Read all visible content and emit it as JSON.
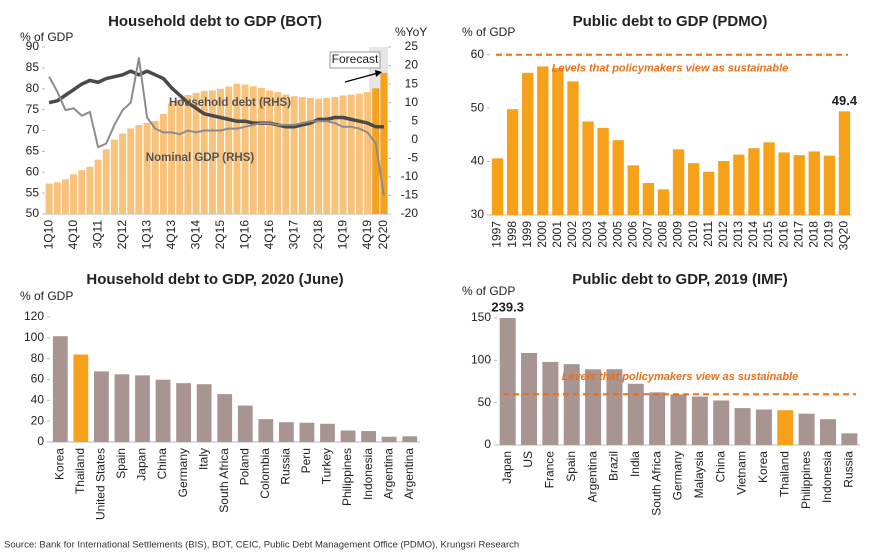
{
  "chart_data": [
    {
      "type": "bar_line",
      "title": "Household debt to GDP (BOT)",
      "y_label": "% of GDP",
      "y2_label": "%YoY",
      "annotation": "Forecast",
      "categories": [
        "1Q10",
        null,
        null,
        "4Q10",
        null,
        null,
        "3Q11",
        null,
        null,
        "2Q12",
        null,
        null,
        "1Q13",
        null,
        null,
        "4Q13",
        null,
        null,
        "3Q14",
        null,
        null,
        "2Q15",
        null,
        null,
        "1Q16",
        null,
        null,
        "4Q16",
        null,
        null,
        "3Q17",
        null,
        null,
        "2Q18",
        null,
        null,
        "1Q19",
        null,
        null,
        "4Q19",
        null,
        "2Q20"
      ],
      "values": [
        57.3,
        57.6,
        58.3,
        59.5,
        60.5,
        61.3,
        63.0,
        65.5,
        67.8,
        69.3,
        70.5,
        71.3,
        71.8,
        72.3,
        74.0,
        76.5,
        77.3,
        78.5,
        79.0,
        79.5,
        79.6,
        80.0,
        80.5,
        81.2,
        81.0,
        80.6,
        80.2,
        79.6,
        79.2,
        78.6,
        78.2,
        78.0,
        77.8,
        77.6,
        77.8,
        78.0,
        78.4,
        78.6,
        78.8,
        79.2,
        80.1,
        83.8
      ],
      "colors": [
        "#f9c27a",
        "#f9c27a",
        "#f9c27a",
        "#f9c27a",
        "#f9c27a",
        "#f9c27a",
        "#f9c27a",
        "#f9c27a",
        "#f9c27a",
        "#f9c27a",
        "#f9c27a",
        "#f9c27a",
        "#f9c27a",
        "#f9c27a",
        "#f9c27a",
        "#f9c27a",
        "#f9c27a",
        "#f9c27a",
        "#f9c27a",
        "#f9c27a",
        "#f9c27a",
        "#f9c27a",
        "#f9c27a",
        "#f9c27a",
        "#f9c27a",
        "#f9c27a",
        "#f9c27a",
        "#f9c27a",
        "#f9c27a",
        "#f9c27a",
        "#f9c27a",
        "#f9c27a",
        "#f9c27a",
        "#f9c27a",
        "#f9c27a",
        "#f9c27a",
        "#f9c27a",
        "#f9c27a",
        "#f9c27a",
        "#f9c27a",
        "#f7a11a",
        "#f7a11a"
      ],
      "series": [
        {
          "name": "Household debt (RHS)",
          "color": "#4a4a4a",
          "axis": "y2",
          "values": [
            10,
            10.5,
            12,
            13.5,
            15,
            16,
            15.5,
            16.5,
            17,
            17.5,
            18.5,
            17.5,
            18.5,
            17.5,
            16.5,
            14,
            12,
            10,
            8.5,
            7,
            6.5,
            6,
            5.5,
            5,
            5,
            4.5,
            4.5,
            4.5,
            4,
            3.5,
            3.5,
            4,
            4.5,
            5.5,
            5.5,
            6,
            6,
            5.5,
            5,
            4.5,
            3.5,
            3.5
          ]
        },
        {
          "name": "Nominal GDP (RHS)",
          "color": "#8c8c8c",
          "axis": "y2",
          "values": [
            17,
            13,
            8,
            8.5,
            6.5,
            7.5,
            -2,
            -1,
            4,
            8,
            10,
            22,
            6,
            3,
            2,
            2,
            1.5,
            2.5,
            2,
            2.5,
            2.5,
            2.5,
            3,
            3,
            3.5,
            4,
            4.5,
            4.5,
            4,
            4,
            4,
            4.5,
            5,
            5,
            5,
            4.5,
            3.5,
            3.5,
            3,
            2,
            -1,
            -15
          ]
        }
      ],
      "ylim": [
        50,
        90
      ],
      "yticks": [
        50,
        55,
        60,
        65,
        70,
        75,
        80,
        85,
        90
      ],
      "y2lim": [
        -20,
        25
      ],
      "y2ticks": [
        -20,
        -15,
        -10,
        -5,
        0,
        5,
        10,
        15,
        20,
        25
      ]
    },
    {
      "type": "bar",
      "title": "Public debt to GDP (PDMO)",
      "y_label": "% of GDP",
      "categories": [
        "1997",
        "1998",
        "1999",
        "2000",
        "2001",
        "2002",
        "2003",
        "2004",
        "2005",
        "2006",
        "2007",
        "2008",
        "2009",
        "2010",
        "2011",
        "2012",
        "2013",
        "2014",
        "2015",
        "2016",
        "2017",
        "2018",
        "2019",
        "3Q20"
      ],
      "values": [
        40.6,
        49.8,
        56.6,
        57.8,
        57.5,
        55.0,
        47.5,
        46.3,
        44.0,
        39.3,
        36.0,
        34.8,
        42.3,
        39.7,
        38.1,
        40.1,
        41.3,
        42.5,
        43.6,
        41.7,
        41.2,
        41.9,
        41.1,
        49.4
      ],
      "value_labels": [
        null,
        null,
        null,
        null,
        null,
        null,
        null,
        null,
        null,
        null,
        null,
        null,
        null,
        null,
        null,
        null,
        null,
        null,
        null,
        null,
        null,
        null,
        null,
        "49.4"
      ],
      "color": "#f7a11a",
      "ylim": [
        30,
        62
      ],
      "yticks": [
        30,
        40,
        50,
        60
      ],
      "reference": {
        "value": 60,
        "label": "Levels that policymakers view as sustainable",
        "color": "#e8701a"
      }
    },
    {
      "type": "bar",
      "title": "Household debt to GDP, 2020 (June)",
      "y_label": "% of GDP",
      "categories": [
        "Korea",
        "Thailand",
        "United States",
        "Spain",
        "Japan",
        "China",
        "Germany",
        "Italy",
        "South Africa",
        "Poland",
        "Colombia",
        "Russia",
        "Peru",
        "Turkey",
        "Philippines",
        "Indonesia",
        "Argentina",
        "Argentina"
      ],
      "values": [
        101.6,
        84.0,
        67.8,
        65.0,
        64.0,
        59.8,
        56.5,
        55.5,
        46.0,
        35.0,
        22.0,
        19.0,
        18.5,
        17.5,
        11.0,
        10.5,
        5.0,
        5.5
      ],
      "colors": [
        "#a89592",
        "#f7a11a",
        "#a89592",
        "#a89592",
        "#a89592",
        "#a89592",
        "#a89592",
        "#a89592",
        "#a89592",
        "#a89592",
        "#a89592",
        "#a89592",
        "#a89592",
        "#a89592",
        "#a89592",
        "#a89592",
        "#a89592",
        "#a89592"
      ],
      "ylim": [
        0,
        120
      ],
      "yticks": [
        0,
        20,
        40,
        60,
        80,
        100,
        120
      ]
    },
    {
      "type": "bar",
      "title": "Public debt to GDP, 2019 (IMF)",
      "y_label": "% of GDP",
      "categories": [
        "Japan",
        "US",
        "France",
        "Spain",
        "Argentina",
        "Brazil",
        "India",
        "South Africa",
        "Germany",
        "Malaysia",
        "China",
        "Vietnam",
        "Korea",
        "Thailand",
        "Philippines",
        "Indonesia",
        "Russia"
      ],
      "values": [
        239.3,
        108.7,
        98.1,
        95.5,
        89.4,
        89.5,
        72.3,
        62.2,
        59.8,
        57.2,
        52.6,
        43.6,
        41.9,
        41.1,
        37.0,
        30.5,
        13.8
      ],
      "value_labels": [
        "239.3",
        null,
        null,
        null,
        null,
        null,
        null,
        null,
        null,
        null,
        null,
        null,
        null,
        null,
        null,
        null,
        null
      ],
      "colors": [
        "#a89592",
        "#a89592",
        "#a89592",
        "#a89592",
        "#a89592",
        "#a89592",
        "#a89592",
        "#a89592",
        "#a89592",
        "#a89592",
        "#a89592",
        "#a89592",
        "#a89592",
        "#f7a11a",
        "#a89592",
        "#a89592",
        "#a89592"
      ],
      "ylim": [
        0,
        150
      ],
      "yticks": [
        0,
        50,
        100,
        150
      ],
      "reference": {
        "value": 60,
        "label": "Levels that policymakers view as sustainable",
        "color": "#e8701a"
      }
    }
  ],
  "source": "Source: Bank for International Settlements (BIS), BOT, CEIC, Public Debt Management Office (PDMO), Krungsri Research"
}
